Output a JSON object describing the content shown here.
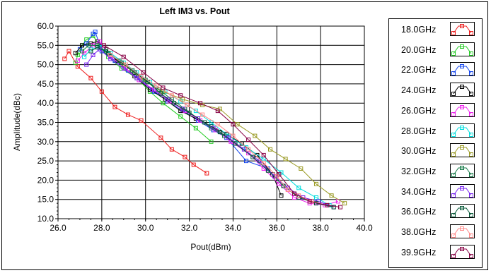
{
  "chart_data": {
    "type": "line",
    "title": "Left IM3 vs. Pout",
    "xlabel": "Pout(dBm)",
    "ylabel": "Amplitude(dBc)",
    "xlim": [
      26.0,
      40.0
    ],
    "ylim": [
      10.0,
      60.0
    ],
    "x_ticks": [
      26.0,
      28.0,
      30.0,
      32.0,
      34.0,
      36.0,
      38.0,
      40.0
    ],
    "y_ticks": [
      10.0,
      15.0,
      20.0,
      25.0,
      30.0,
      35.0,
      40.0,
      45.0,
      50.0,
      55.0,
      60.0
    ],
    "x_tick_labels": [
      "26.0",
      "28.0",
      "30.0",
      "32.0",
      "34.0",
      "36.0",
      "38.0",
      "40.0"
    ],
    "y_tick_labels": [
      "10.0",
      "15.0",
      "20.0",
      "25.0",
      "30.0",
      "35.0",
      "40.0",
      "45.0",
      "50.0",
      "55.0",
      "60.0"
    ],
    "grid": true,
    "legend_position": "right",
    "series": [
      {
        "name": "18.0GHz",
        "color": "#ee1c1c",
        "points": [
          [
            26.3,
            51.5
          ],
          [
            26.5,
            53.5
          ],
          [
            26.9,
            49.5
          ],
          [
            27.5,
            46.5
          ],
          [
            28.0,
            43.0
          ],
          [
            28.6,
            39.0
          ],
          [
            29.2,
            37.0
          ],
          [
            29.8,
            35.5
          ],
          [
            30.7,
            31.0
          ],
          [
            31.2,
            28.0
          ],
          [
            31.8,
            26.0
          ],
          [
            32.2,
            24.0
          ],
          [
            32.8,
            21.8
          ]
        ]
      },
      {
        "name": "20.0GHz",
        "color": "#22cc22",
        "points": [
          [
            26.8,
            50.5
          ],
          [
            26.9,
            52.5
          ],
          [
            27.1,
            55.0
          ],
          [
            27.3,
            56.5
          ],
          [
            27.6,
            57.5
          ],
          [
            27.9,
            55.0
          ],
          [
            28.3,
            52.0
          ],
          [
            28.9,
            49.0
          ],
          [
            29.6,
            46.5
          ],
          [
            30.2,
            43.0
          ],
          [
            30.8,
            40.0
          ],
          [
            31.6,
            36.5
          ],
          [
            32.3,
            33.5
          ],
          [
            33.0,
            30.0
          ]
        ]
      },
      {
        "name": "22.0GHz",
        "color": "#1144ee",
        "points": [
          [
            27.0,
            54.0
          ],
          [
            27.3,
            55.5
          ],
          [
            27.6,
            58.0
          ],
          [
            27.7,
            58.5
          ],
          [
            28.0,
            53.5
          ],
          [
            28.6,
            51.0
          ],
          [
            29.2,
            48.5
          ],
          [
            29.8,
            46.0
          ],
          [
            30.4,
            43.0
          ],
          [
            31.0,
            40.5
          ],
          [
            31.7,
            38.0
          ],
          [
            32.4,
            35.5
          ],
          [
            33.1,
            33.0
          ],
          [
            33.7,
            31.0
          ],
          [
            34.6,
            25.0
          ],
          [
            35.6,
            23.0
          ]
        ]
      },
      {
        "name": "24.0GHz",
        "color": "#000000",
        "points": [
          [
            26.8,
            53.0
          ],
          [
            27.1,
            55.0
          ],
          [
            27.5,
            55.5
          ],
          [
            27.8,
            56.0
          ],
          [
            28.2,
            54.0
          ],
          [
            28.7,
            51.0
          ],
          [
            29.5,
            47.0
          ],
          [
            30.2,
            43.5
          ],
          [
            30.9,
            41.0
          ],
          [
            31.6,
            38.0
          ],
          [
            32.3,
            36.0
          ],
          [
            33.0,
            34.0
          ],
          [
            33.7,
            32.0
          ],
          [
            34.4,
            29.5
          ],
          [
            35.1,
            26.5
          ],
          [
            35.8,
            21.5
          ],
          [
            36.2,
            16.0
          ]
        ]
      },
      {
        "name": "26.0GHz",
        "color": "#ee22ee",
        "points": [
          [
            26.9,
            51.0
          ],
          [
            27.2,
            53.0
          ],
          [
            27.6,
            55.0
          ],
          [
            27.9,
            56.0
          ],
          [
            28.4,
            52.0
          ],
          [
            29.1,
            49.0
          ],
          [
            29.7,
            46.0
          ],
          [
            30.4,
            43.5
          ],
          [
            31.1,
            40.5
          ],
          [
            31.8,
            38.0
          ],
          [
            32.5,
            35.5
          ],
          [
            33.2,
            33.0
          ],
          [
            33.9,
            30.0
          ],
          [
            34.7,
            27.0
          ],
          [
            35.4,
            23.0
          ],
          [
            36.1,
            19.0
          ],
          [
            36.8,
            15.5
          ],
          [
            37.5,
            14.0
          ],
          [
            38.2,
            13.5
          ],
          [
            38.8,
            14.5
          ]
        ]
      },
      {
        "name": "28.0GHz",
        "color": "#00dddd",
        "points": [
          [
            27.2,
            52.0
          ],
          [
            27.5,
            54.0
          ],
          [
            27.9,
            54.5
          ],
          [
            28.4,
            53.0
          ],
          [
            29.0,
            50.5
          ],
          [
            29.6,
            48.0
          ],
          [
            30.2,
            45.5
          ],
          [
            30.9,
            43.0
          ],
          [
            31.6,
            40.5
          ],
          [
            32.3,
            38.0
          ],
          [
            33.0,
            35.0
          ],
          [
            33.8,
            31.5
          ],
          [
            34.6,
            28.5
          ],
          [
            35.4,
            25.5
          ],
          [
            36.2,
            22.0
          ],
          [
            37.0,
            18.0
          ],
          [
            37.8,
            15.5
          ],
          [
            38.4,
            13.5
          ]
        ]
      },
      {
        "name": "30.0GHz",
        "color": "#999922",
        "points": [
          [
            28.3,
            53.0
          ],
          [
            29.0,
            50.0
          ],
          [
            29.9,
            46.0
          ],
          [
            30.8,
            43.0
          ],
          [
            31.7,
            41.0
          ],
          [
            32.6,
            39.5
          ],
          [
            33.4,
            38.5
          ],
          [
            34.2,
            34.5
          ],
          [
            35.0,
            31.5
          ],
          [
            35.7,
            28.0
          ],
          [
            36.4,
            25.5
          ],
          [
            37.1,
            23.0
          ],
          [
            37.8,
            19.0
          ],
          [
            38.5,
            16.0
          ],
          [
            39.1,
            14.0
          ]
        ]
      },
      {
        "name": "32.0GHz",
        "color": "#117744",
        "points": [
          [
            27.1,
            53.5
          ],
          [
            27.4,
            55.0
          ],
          [
            27.8,
            55.0
          ],
          [
            28.2,
            53.5
          ],
          [
            28.8,
            51.0
          ],
          [
            29.4,
            48.5
          ],
          [
            30.0,
            46.0
          ],
          [
            30.6,
            43.5
          ],
          [
            31.2,
            41.0
          ],
          [
            31.8,
            38.5
          ],
          [
            32.4,
            36.0
          ],
          [
            33.0,
            33.5
          ],
          [
            33.6,
            31.5
          ]
        ]
      },
      {
        "name": "34.0GHz",
        "color": "#7722ee",
        "points": [
          [
            27.3,
            50.0
          ],
          [
            27.6,
            52.5
          ],
          [
            27.9,
            54.0
          ],
          [
            28.4,
            51.5
          ],
          [
            29.0,
            49.0
          ],
          [
            29.6,
            46.5
          ],
          [
            30.3,
            43.5
          ],
          [
            31.0,
            41.0
          ],
          [
            31.7,
            38.5
          ],
          [
            32.4,
            36.0
          ],
          [
            33.1,
            33.5
          ],
          [
            33.8,
            31.0
          ],
          [
            34.5,
            28.0
          ],
          [
            35.2,
            25.0
          ],
          [
            35.9,
            21.0
          ],
          [
            36.5,
            18.0
          ],
          [
            37.2,
            15.5
          ],
          [
            37.9,
            14.5
          ],
          [
            38.6,
            13.0
          ]
        ]
      },
      {
        "name": "36.0GHz",
        "color": "#005533",
        "points": [
          [
            27.5,
            53.5
          ],
          [
            27.8,
            54.5
          ],
          [
            28.3,
            53.0
          ],
          [
            28.9,
            50.5
          ],
          [
            29.5,
            48.0
          ],
          [
            30.1,
            45.5
          ],
          [
            30.7,
            42.5
          ],
          [
            31.3,
            40.0
          ],
          [
            32.0,
            37.5
          ],
          [
            32.7,
            35.0
          ],
          [
            33.4,
            32.5
          ],
          [
            34.1,
            29.5
          ],
          [
            34.9,
            26.0
          ],
          [
            35.6,
            22.5
          ],
          [
            36.3,
            18.5
          ],
          [
            37.0,
            15.5
          ],
          [
            37.8,
            14.0
          ],
          [
            38.6,
            13.0
          ]
        ]
      },
      {
        "name": "38.0GHz",
        "color": "#ff8888",
        "points": [
          [
            28.4,
            52.5
          ],
          [
            29.1,
            50.0
          ],
          [
            29.8,
            47.0
          ],
          [
            30.5,
            44.5
          ],
          [
            31.2,
            42.0
          ],
          [
            31.9,
            39.5
          ],
          [
            32.6,
            37.0
          ],
          [
            33.3,
            34.5
          ],
          [
            34.0,
            31.5
          ],
          [
            34.7,
            28.0
          ],
          [
            35.4,
            24.5
          ],
          [
            36.0,
            21.0
          ],
          [
            36.5,
            17.5
          ],
          [
            37.0,
            16.0
          ],
          [
            37.6,
            14.5
          ],
          [
            38.3,
            13.5
          ]
        ]
      },
      {
        "name": "39.9GHz",
        "color": "#880044",
        "points": [
          [
            28.1,
            55.0
          ],
          [
            29.0,
            52.0
          ],
          [
            29.9,
            48.0
          ],
          [
            30.8,
            44.0
          ],
          [
            31.6,
            42.0
          ],
          [
            32.5,
            40.0
          ],
          [
            33.3,
            38.0
          ],
          [
            34.0,
            34.5
          ],
          [
            34.7,
            30.5
          ],
          [
            35.4,
            26.5
          ],
          [
            36.1,
            21.5
          ],
          [
            36.8,
            16.5
          ],
          [
            37.5,
            14.5
          ],
          [
            38.3,
            13.5
          ],
          [
            38.9,
            13.0
          ]
        ]
      }
    ]
  }
}
